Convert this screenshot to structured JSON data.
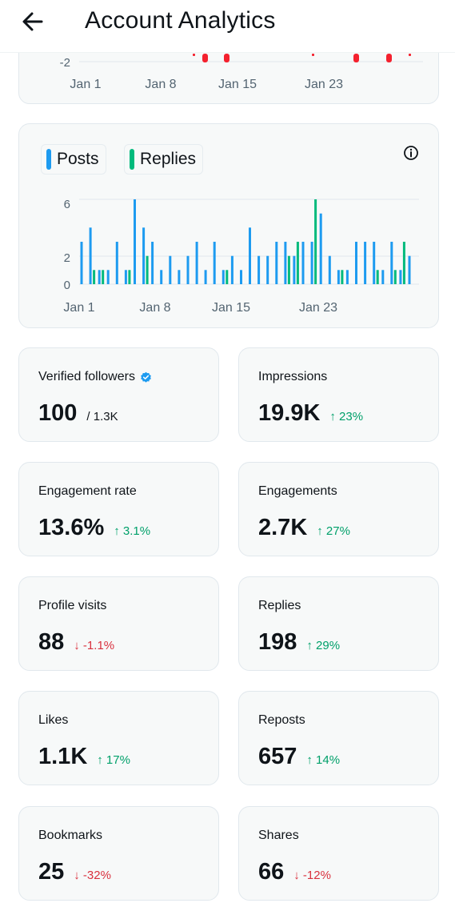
{
  "header": {
    "title": "Account Analytics"
  },
  "top_chart": {
    "ytick": "-2",
    "xticks": [
      "Jan 1",
      "Jan 8",
      "Jan 15",
      "Jan 23"
    ]
  },
  "posts_chart": {
    "legend": {
      "posts": "Posts",
      "replies": "Replies"
    },
    "colors": {
      "posts": "#1d9bf0",
      "replies": "#00ba7c",
      "negative": "#f4212e"
    },
    "chart_data": {
      "type": "bar",
      "yticks": [
        "6",
        "2",
        "0"
      ],
      "ylim": [
        0,
        6
      ],
      "xticks": [
        "Jan 1",
        "Jan 8",
        "Jan 15",
        "Jan 23"
      ],
      "series": [
        {
          "name": "Posts",
          "values": [
            3,
            4,
            1,
            1,
            3,
            1,
            6,
            4,
            3,
            1,
            2,
            1,
            2,
            3,
            1,
            3,
            1,
            2,
            1,
            4,
            2,
            2,
            3,
            3,
            2,
            3,
            3,
            5,
            2,
            1,
            1,
            3,
            3,
            3,
            1,
            3,
            1,
            2
          ]
        },
        {
          "name": "Replies",
          "values": [
            0,
            1,
            1,
            0,
            0,
            1,
            0,
            2,
            0,
            0,
            0,
            0,
            0,
            0,
            0,
            0,
            1,
            0,
            0,
            0,
            0,
            0,
            0,
            2,
            3,
            0,
            6,
            0,
            0,
            1,
            0,
            0,
            0,
            1,
            0,
            1,
            3,
            0
          ]
        }
      ]
    }
  },
  "stats": [
    {
      "label": "Verified followers",
      "value": "100",
      "sub": "/ 1.3K",
      "change": "",
      "direction": "none",
      "verified": true
    },
    {
      "label": "Impressions",
      "value": "19.9K",
      "sub": "",
      "change": "↑ 23%",
      "direction": "up"
    },
    {
      "label": "Engagement rate",
      "value": "13.6%",
      "sub": "",
      "change": "↑ 3.1%",
      "direction": "up"
    },
    {
      "label": "Engagements",
      "value": "2.7K",
      "sub": "",
      "change": "↑ 27%",
      "direction": "up"
    },
    {
      "label": "Profile visits",
      "value": "88",
      "sub": "",
      "change": "↓ -1.1%",
      "direction": "down"
    },
    {
      "label": "Replies",
      "value": "198",
      "sub": "",
      "change": "↑ 29%",
      "direction": "up"
    },
    {
      "label": "Likes",
      "value": "1.1K",
      "sub": "",
      "change": "↑ 17%",
      "direction": "up"
    },
    {
      "label": "Reposts",
      "value": "657",
      "sub": "",
      "change": "↑ 14%",
      "direction": "up"
    },
    {
      "label": "Bookmarks",
      "value": "25",
      "sub": "",
      "change": "↓ -32%",
      "direction": "down"
    },
    {
      "label": "Shares",
      "value": "66",
      "sub": "",
      "change": "↓ -12%",
      "direction": "down"
    }
  ]
}
